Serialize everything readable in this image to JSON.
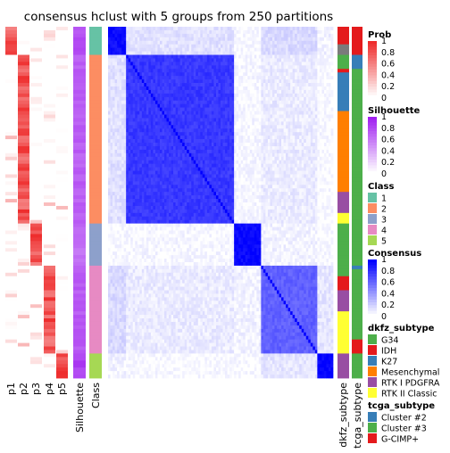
{
  "chart_data": {
    "type": "heatmap",
    "title": "consensus hclust with 5 groups from 250 partitions",
    "n_samples": 100,
    "top_annotations": [
      "p1",
      "p2",
      "p3",
      "p4",
      "p5",
      "Silhouette",
      "Class"
    ],
    "right_annotations": [
      "dkfz_subtype",
      "tcga_subtype"
    ],
    "classes": [
      {
        "id": "1",
        "count": 8,
        "color": "#66C2A5"
      },
      {
        "id": "2",
        "count": 48,
        "color": "#FC8D62"
      },
      {
        "id": "3",
        "count": 12,
        "color": "#8DA0CB"
      },
      {
        "id": "4",
        "count": 25,
        "color": "#E78AC3"
      },
      {
        "id": "5",
        "count": 7,
        "color": "#A6D854"
      }
    ],
    "mean_silhouette": [
      0.78,
      0.72,
      0.65,
      0.74,
      0.85
    ],
    "consensus_block_mean": [
      [
        0.95,
        0.12,
        0.02,
        0.15,
        0.05
      ],
      [
        0.12,
        0.78,
        0.03,
        0.08,
        0.02
      ],
      [
        0.02,
        0.03,
        0.97,
        0.05,
        0.02
      ],
      [
        0.15,
        0.08,
        0.05,
        0.62,
        0.1
      ],
      [
        0.05,
        0.02,
        0.02,
        0.1,
        0.98
      ]
    ],
    "dkfz_subtype_counts": [
      {
        "G34": 0,
        "IDH": 5,
        "K27": 0,
        "Mesenchymal": 0,
        "RTK I PDGFRA": 0,
        "RTK II Classic": 0,
        "other": 3
      },
      {
        "G34": 4,
        "IDH": 1,
        "K27": 11,
        "Mesenchymal": 23,
        "RTK I PDGFRA": 6,
        "RTK II Classic": 3,
        "other": 0
      },
      {
        "G34": 12,
        "IDH": 0,
        "K27": 0,
        "Mesenchymal": 0,
        "RTK I PDGFRA": 0,
        "RTK II Classic": 0,
        "other": 0
      },
      {
        "G34": 3,
        "IDH": 4,
        "K27": 0,
        "Mesenchymal": 0,
        "RTK I PDGFRA": 6,
        "RTK II Classic": 12,
        "other": 0
      },
      {
        "G34": 0,
        "IDH": 0,
        "K27": 0,
        "Mesenchymal": 0,
        "RTK I PDGFRA": 7,
        "RTK II Classic": 0,
        "other": 0
      }
    ],
    "tcga_subtype_counts": [
      {
        "Cluster #2": 0,
        "Cluster #3": 0,
        "G-CIMP+": 8
      },
      {
        "Cluster #2": 4,
        "Cluster #3": 44,
        "G-CIMP+": 0
      },
      {
        "Cluster #2": 0,
        "Cluster #3": 12,
        "G-CIMP+": 0
      },
      {
        "Cluster #2": 1,
        "Cluster #3": 20,
        "G-CIMP+": 4
      },
      {
        "Cluster #2": 0,
        "Cluster #3": 7,
        "G-CIMP+": 0
      }
    ]
  },
  "legends": {
    "prob": {
      "title": "Prob",
      "ticks": [
        "1",
        "0.8",
        "0.6",
        "0.4",
        "0.2",
        "0"
      ],
      "colors": [
        "#FFFFFF",
        "#EE2C2C"
      ]
    },
    "silhouette": {
      "title": "Silhouette",
      "ticks": [
        "1",
        "0.8",
        "0.6",
        "0.4",
        "0.2",
        "0"
      ],
      "colors": [
        "#FFFFFF",
        "#A020F0"
      ]
    },
    "class": {
      "title": "Class",
      "items": [
        {
          "label": "1",
          "color": "#66C2A5"
        },
        {
          "label": "2",
          "color": "#FC8D62"
        },
        {
          "label": "3",
          "color": "#8DA0CB"
        },
        {
          "label": "4",
          "color": "#E78AC3"
        },
        {
          "label": "5",
          "color": "#A6D854"
        }
      ]
    },
    "consensus": {
      "title": "Consensus",
      "ticks": [
        "1",
        "0.8",
        "0.6",
        "0.4",
        "0.2",
        "0"
      ],
      "colors": [
        "#FFFFFF",
        "#0000FF"
      ]
    },
    "dkfz": {
      "title": "dkfz_subtype",
      "items": [
        {
          "label": "G34",
          "color": "#4DAF4A"
        },
        {
          "label": "IDH",
          "color": "#E41A1C"
        },
        {
          "label": "K27",
          "color": "#377EB8"
        },
        {
          "label": "Mesenchymal",
          "color": "#FF7F00"
        },
        {
          "label": "RTK I PDGFRA",
          "color": "#984EA3"
        },
        {
          "label": "RTK II Classic",
          "color": "#FFFF33"
        }
      ],
      "other_color": "#7B7B7B"
    },
    "tcga": {
      "title": "tcga_subtype",
      "items": [
        {
          "label": "Cluster #2",
          "color": "#377EB8"
        },
        {
          "label": "Cluster #3",
          "color": "#4DAF4A"
        },
        {
          "label": "G-CIMP+",
          "color": "#E41A1C"
        }
      ]
    }
  }
}
